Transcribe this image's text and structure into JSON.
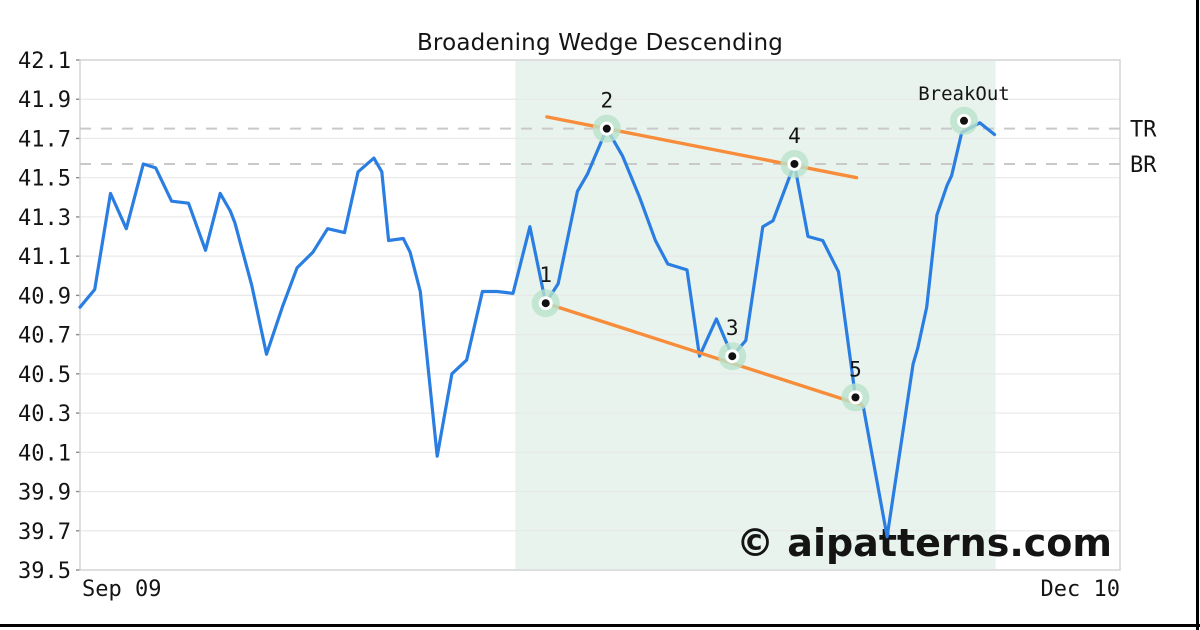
{
  "title": "Broadening Wedge Descending",
  "watermark": "© aipatterns.com",
  "chart_data": {
    "type": "line",
    "title": "Broadening Wedge Descending",
    "x_axis": {
      "start_label": "Sep 09",
      "end_label": "Dec 10",
      "domain_days": [
        0,
        92
      ],
      "grid": false
    },
    "y_axis": {
      "min": 39.5,
      "max": 42.1,
      "ticks": [
        42.1,
        41.9,
        41.7,
        41.5,
        41.3,
        41.1,
        40.9,
        40.7,
        40.5,
        40.3,
        40.1,
        39.9,
        39.7,
        39.5
      ],
      "grid": true
    },
    "series": [
      {
        "name": "price",
        "color": "#2b7ee1",
        "points": [
          [
            0,
            40.84
          ],
          [
            1.3,
            40.93
          ],
          [
            2.7,
            41.42
          ],
          [
            4.1,
            41.24
          ],
          [
            5.6,
            41.57
          ],
          [
            6.7,
            41.55
          ],
          [
            8.1,
            41.38
          ],
          [
            9.6,
            41.37
          ],
          [
            11.1,
            41.13
          ],
          [
            12.4,
            41.42
          ],
          [
            13.3,
            41.33
          ],
          [
            13.7,
            41.27
          ],
          [
            15.2,
            40.95
          ],
          [
            16.5,
            40.6
          ],
          [
            17.9,
            40.84
          ],
          [
            19.2,
            41.04
          ],
          [
            20.6,
            41.12
          ],
          [
            21.9,
            41.24
          ],
          [
            23.4,
            41.22
          ],
          [
            24.6,
            41.53
          ],
          [
            26.0,
            41.6
          ],
          [
            26.7,
            41.53
          ],
          [
            27.3,
            41.18
          ],
          [
            28.6,
            41.19
          ],
          [
            29.2,
            41.12
          ],
          [
            30.1,
            40.92
          ],
          [
            31.6,
            40.08
          ],
          [
            32.9,
            40.5
          ],
          [
            34.2,
            40.57
          ],
          [
            35.6,
            40.92
          ],
          [
            36.9,
            40.92
          ],
          [
            38.3,
            40.91
          ],
          [
            39.8,
            41.25
          ],
          [
            41.2,
            40.86
          ],
          [
            42.3,
            40.96
          ],
          [
            44.0,
            41.43
          ],
          [
            44.9,
            41.52
          ],
          [
            46.6,
            41.75
          ],
          [
            48.0,
            41.61
          ],
          [
            49.5,
            41.4
          ],
          [
            50.9,
            41.18
          ],
          [
            52.0,
            41.06
          ],
          [
            53.7,
            41.03
          ],
          [
            54.8,
            40.59
          ],
          [
            56.3,
            40.78
          ],
          [
            57.7,
            40.59
          ],
          [
            58.9,
            40.67
          ],
          [
            60.4,
            41.25
          ],
          [
            61.3,
            41.28
          ],
          [
            63.2,
            41.57
          ],
          [
            64.4,
            41.2
          ],
          [
            65.7,
            41.18
          ],
          [
            67.1,
            41.02
          ],
          [
            68.6,
            40.38
          ],
          [
            69.3,
            40.33
          ],
          [
            71.4,
            39.67
          ],
          [
            73.7,
            40.55
          ],
          [
            74.1,
            40.63
          ],
          [
            74.9,
            40.84
          ],
          [
            75.8,
            41.31
          ],
          [
            76.7,
            41.46
          ],
          [
            77.1,
            41.51
          ],
          [
            78.0,
            41.73
          ],
          [
            79.6,
            41.78
          ],
          [
            80.9,
            41.72
          ]
        ]
      }
    ],
    "pattern": {
      "name": "Broadening Wedge Descending",
      "shaded_region_days": [
        38.5,
        81.0
      ],
      "region_color": "#e8f3ed",
      "trendlines": [
        {
          "name": "upper",
          "color": "#f78d3a",
          "from_day": 41.3,
          "from_price": 41.81,
          "to_day": 68.7,
          "to_price": 41.5
        },
        {
          "name": "lower",
          "color": "#f78d3a",
          "from_day": 41.2,
          "from_price": 40.86,
          "to_day": 69.2,
          "to_price": 40.34
        }
      ],
      "points": [
        {
          "label": "1",
          "day": 41.2,
          "price": 40.86
        },
        {
          "label": "2",
          "day": 46.6,
          "price": 41.75
        },
        {
          "label": "3",
          "day": 57.7,
          "price": 40.59
        },
        {
          "label": "4",
          "day": 63.2,
          "price": 41.57
        },
        {
          "label": "5",
          "day": 68.6,
          "price": 40.38
        },
        {
          "label": "BreakOut",
          "day": 78.2,
          "price": 41.79
        }
      ],
      "levels": [
        {
          "label": "TR",
          "price": 41.75
        },
        {
          "label": "BR",
          "price": 41.57
        }
      ],
      "marker_colors": {
        "halo": "#b9e2ca",
        "ring": "#ffffff",
        "dot": "#111111"
      }
    },
    "styles": {
      "grid_color": "#e8e8e8",
      "border_color": "#d4d4d4",
      "level_dash_color": "#c9c9c9",
      "tick_color": "#8a8a8a",
      "text_color": "#141414",
      "watermark_color": "#c7c9f3",
      "background": "#ffffff"
    }
  }
}
